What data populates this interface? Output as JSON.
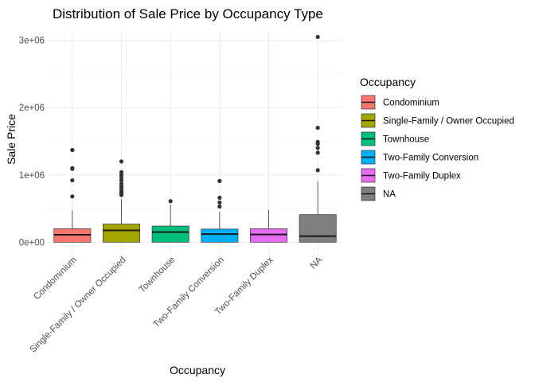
{
  "chart_data": {
    "type": "boxplot",
    "title": "Distribution of Sale Price by Occupancy Type",
    "xlabel": "Occupancy",
    "ylabel": "Sale Price",
    "ylim": [
      -150000,
      3150000
    ],
    "yticks": [
      0,
      1000000,
      2000000,
      3000000
    ],
    "ytick_labels": [
      "0e+00",
      "1e+06",
      "2e+06",
      "3e+06"
    ],
    "grid": true,
    "legend": {
      "title": "Occupancy",
      "position": "right"
    },
    "series": [
      {
        "name": "Condominium",
        "color": "#F8766D",
        "whisker_low": 0,
        "q1": 0,
        "median": 110000,
        "q3": 200000,
        "whisker_high": 470000,
        "outliers": [
          680000,
          920000,
          1090000,
          1100000,
          1370000
        ]
      },
      {
        "name": "Single-Family / Owner Occupied",
        "color": "#A3A500",
        "whisker_low": 0,
        "q1": 0,
        "median": 175000,
        "q3": 270000,
        "whisker_high": 640000,
        "outliers": [
          700000,
          730000,
          750000,
          770000,
          800000,
          830000,
          870000,
          920000,
          960000,
          1000000,
          1040000,
          1200000
        ]
      },
      {
        "name": "Townhouse",
        "color": "#00BF7D",
        "whisker_low": 0,
        "q1": 0,
        "median": 150000,
        "q3": 240000,
        "whisker_high": 560000,
        "outliers": [
          610000
        ]
      },
      {
        "name": "Two-Family Conversion",
        "color": "#00B0F6",
        "whisker_low": 0,
        "q1": 0,
        "median": 120000,
        "q3": 195000,
        "whisker_high": 450000,
        "outliers": [
          530000,
          590000,
          660000,
          910000
        ]
      },
      {
        "name": "Two-Family Duplex",
        "color": "#E76BF3",
        "whisker_low": 0,
        "q1": 0,
        "median": 115000,
        "q3": 200000,
        "whisker_high": 480000,
        "outliers": []
      },
      {
        "name": "NA",
        "color": "#7F7F7F",
        "whisker_low": 0,
        "q1": 0,
        "median": 90000,
        "q3": 410000,
        "whisker_high": 900000,
        "outliers": [
          1070000,
          1330000,
          1400000,
          1460000,
          1490000,
          1700000,
          3050000
        ]
      }
    ]
  }
}
